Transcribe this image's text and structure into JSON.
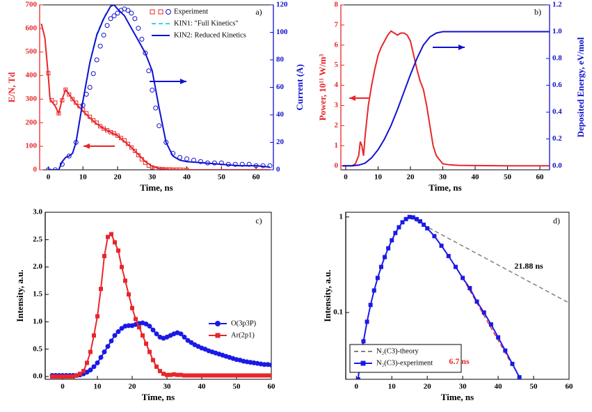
{
  "chart_data": [
    {
      "type": "line",
      "xlabel": "Time, ns",
      "ylabel": "E/N, Td",
      "y2label": "Current (A)",
      "annotations": [
        {
          "text": "a)"
        }
      ],
      "xlim": [
        -2.5,
        65
      ],
      "xticks": [
        0,
        10,
        20,
        30,
        40,
        50,
        60
      ],
      "ylim": [
        0,
        700
      ],
      "yticks": [
        0,
        100,
        200,
        300,
        400,
        500,
        600,
        700
      ],
      "y_color": "#e8262a",
      "y2lim": [
        0,
        120
      ],
      "y2ticks": [
        0,
        20,
        40,
        60,
        80,
        100,
        120
      ],
      "y2_color": "#1010d0",
      "legend": "upper right",
      "series": [
        {
          "color": "#e8262a",
          "line": "solid",
          "marker": "none",
          "x": [
            -2,
            -1,
            0,
            0.5,
            1,
            2,
            3,
            4,
            5,
            6,
            7,
            8,
            10,
            12,
            14,
            16,
            18,
            20,
            22,
            24,
            26,
            28,
            30,
            32,
            35,
            40,
            50,
            64
          ],
          "values": [
            620,
            560,
            400,
            300,
            290,
            270,
            240,
            300,
            340,
            320,
            300,
            280,
            250,
            220,
            195,
            175,
            160,
            145,
            120,
            95,
            65,
            35,
            15,
            5,
            2,
            0,
            0,
            0
          ]
        },
        {
          "name": "Experiment",
          "color": "#e8262a",
          "line": "none",
          "marker": "square",
          "fill": "open",
          "x": [
            0,
            1,
            2,
            3,
            4,
            5,
            6,
            7,
            8,
            9,
            10,
            11,
            12,
            13,
            14,
            15,
            16,
            17,
            18,
            19,
            20,
            21,
            22,
            23,
            24,
            25,
            26,
            27,
            28,
            29,
            30,
            31,
            32,
            33,
            34,
            35,
            36,
            37,
            38,
            39,
            40
          ],
          "values": [
            410,
            295,
            285,
            240,
            295,
            340,
            320,
            300,
            285,
            270,
            255,
            240,
            225,
            210,
            200,
            185,
            175,
            168,
            160,
            155,
            145,
            135,
            125,
            110,
            95,
            80,
            62,
            45,
            30,
            18,
            10,
            6,
            4,
            3,
            2,
            2,
            1,
            1,
            1,
            0,
            0
          ]
        },
        {
          "color": "#1010d0",
          "line": "none",
          "marker": "circle",
          "fill": "open",
          "axis": "y2",
          "x": [
            0,
            2,
            4,
            6,
            8,
            10,
            11,
            12,
            13,
            14,
            15,
            16,
            17,
            18,
            19,
            20,
            21,
            22,
            23,
            24,
            25,
            26,
            27,
            28,
            29,
            30,
            31,
            32,
            34,
            36,
            38,
            40,
            42,
            44,
            46,
            48,
            50,
            52,
            54,
            56,
            58,
            60,
            62,
            64
          ],
          "values": [
            0,
            0,
            4,
            10,
            20,
            47,
            55,
            60,
            70,
            80,
            90,
            98,
            105,
            110,
            112,
            114,
            116,
            117,
            116,
            114,
            110,
            103,
            95,
            85,
            72,
            58,
            45,
            32,
            20,
            12,
            9,
            8,
            7,
            6,
            5,
            5,
            5,
            4,
            4,
            4,
            4,
            3,
            3,
            3
          ]
        },
        {
          "name": "KIN1: \"Full Kinetics\"",
          "color": "#33d6e6",
          "line": "dashed",
          "marker": "none",
          "axis": "y2",
          "x": [
            0,
            2,
            3,
            4,
            5,
            6,
            7,
            8,
            9,
            10,
            12,
            14,
            16,
            18,
            19,
            20,
            22,
            24,
            26,
            28,
            30,
            32,
            34,
            36,
            38,
            40,
            45,
            50,
            55,
            60,
            64
          ],
          "values": [
            0,
            0,
            0,
            6,
            9,
            10,
            12,
            21,
            36,
            51,
            79,
            99,
            111,
            119,
            120,
            117,
            112,
            103,
            94,
            85,
            72,
            45,
            20,
            10,
            7,
            6,
            5,
            4,
            3,
            3,
            2
          ]
        },
        {
          "name": "KIN2: Reduced Kinetics",
          "color": "#1010d0",
          "line": "solid",
          "marker": "none",
          "axis": "y2",
          "x": [
            0,
            2,
            3,
            4,
            5,
            6,
            7,
            8,
            9,
            10,
            12,
            14,
            16,
            18,
            19,
            20,
            22,
            24,
            26,
            28,
            30,
            32,
            34,
            36,
            38,
            40,
            45,
            50,
            55,
            60,
            64
          ],
          "values": [
            0,
            0,
            0,
            6,
            9,
            10,
            12,
            20,
            35,
            50,
            78,
            98,
            110,
            119,
            120,
            117,
            112,
            103,
            94,
            85,
            72,
            45,
            20,
            10,
            7,
            6,
            5,
            4,
            3,
            3,
            2
          ]
        }
      ]
    },
    {
      "type": "line",
      "xlabel": "Time, ns",
      "ylabel": "Power, 10¹¹ W/m³",
      "y2label": "Deposited Energy, eV/mol",
      "annotations": [
        {
          "text": "b)"
        }
      ],
      "xlim": [
        -1.5,
        63
      ],
      "xticks": [
        0,
        10,
        20,
        30,
        40,
        50,
        60
      ],
      "ylim": [
        -0.2,
        8
      ],
      "yticks": [
        0,
        1,
        2,
        3,
        4,
        5,
        6,
        7,
        8
      ],
      "y_color": "#e8262a",
      "y2lim": [
        -0.03,
        1.2
      ],
      "y2ticks": [
        {
          "value": 0,
          "label": "0.0"
        },
        0.2,
        0.4,
        0.6,
        0.8,
        {
          "value": 1,
          "label": "1.0"
        },
        1.2
      ],
      "y2_color": "#1010d0",
      "series": [
        {
          "color": "#e8262a",
          "line": "solid",
          "marker": "none",
          "x": [
            -1,
            0,
            2,
            3,
            4,
            4.5,
            5,
            5.5,
            6,
            7,
            8,
            9,
            10,
            11,
            12,
            13,
            14,
            15,
            16,
            17,
            18,
            19,
            20,
            21,
            22,
            23,
            24,
            25,
            26,
            27,
            28,
            30,
            32,
            35,
            40,
            50,
            63
          ],
          "values": [
            0,
            0,
            0,
            0.1,
            0.5,
            1.2,
            1,
            0.5,
            1.5,
            3,
            4,
            4.8,
            5.5,
            5.9,
            6.2,
            6.5,
            6.7,
            6.6,
            6.5,
            6.6,
            6.6,
            6.5,
            6.2,
            5.5,
            4.8,
            4.2,
            3.8,
            3,
            2,
            1,
            0.5,
            0.1,
            0.05,
            0.02,
            0.01,
            0,
            0
          ]
        },
        {
          "color": "#1010d0",
          "line": "solid",
          "marker": "none",
          "axis": "y2",
          "x": [
            -1,
            0,
            2,
            4,
            6,
            8,
            10,
            12,
            14,
            16,
            18,
            20,
            22,
            24,
            26,
            28,
            30,
            32,
            35,
            40,
            50,
            63
          ],
          "values": [
            0,
            0,
            0,
            0.005,
            0.02,
            0.06,
            0.12,
            0.2,
            0.3,
            0.42,
            0.55,
            0.68,
            0.8,
            0.9,
            0.96,
            0.99,
            1,
            1,
            1,
            1,
            1,
            1
          ]
        }
      ]
    },
    {
      "type": "line",
      "xlabel": "Time, ns",
      "ylabel": "Intensity, a.u.",
      "annotations": [
        {
          "text": "c)"
        }
      ],
      "xlim": [
        -5,
        60
      ],
      "xticks": [
        0,
        10,
        20,
        30,
        40,
        50,
        60
      ],
      "ylim": [
        -0.05,
        3
      ],
      "yticks": [
        {
          "value": 0,
          "label": "0.0"
        },
        0.5,
        {
          "value": 1,
          "label": "1.0"
        },
        1.5,
        {
          "value": 2,
          "label": "2.0"
        },
        2.5,
        {
          "value": 3,
          "label": "3.0"
        }
      ],
      "legend": "center right",
      "series": [
        {
          "name": "O(3p3P)",
          "color": "#1a1ae6",
          "line": "solid",
          "marker": "circle",
          "fill": "filled",
          "x": [
            -3,
            -2,
            -1,
            0,
            1,
            2,
            3,
            4,
            5,
            6,
            7,
            8,
            9,
            10,
            11,
            12,
            13,
            14,
            15,
            16,
            17,
            18,
            19,
            20,
            21,
            22,
            23,
            24,
            25,
            26,
            27,
            28,
            29,
            30,
            31,
            32,
            33,
            34,
            35,
            36,
            37,
            38,
            39,
            40,
            41,
            42,
            43,
            44,
            45,
            46,
            47,
            48,
            49,
            50,
            51,
            52,
            53,
            54,
            55,
            56,
            57,
            58,
            59,
            60
          ],
          "values": [
            0.02,
            0.02,
            0.02,
            0.02,
            0.02,
            0.02,
            0.02,
            0.02,
            0.03,
            0.05,
            0.08,
            0.12,
            0.18,
            0.25,
            0.35,
            0.45,
            0.55,
            0.65,
            0.75,
            0.82,
            0.88,
            0.92,
            0.93,
            0.93,
            0.95,
            0.97,
            0.98,
            0.96,
            0.92,
            0.85,
            0.78,
            0.72,
            0.7,
            0.72,
            0.75,
            0.78,
            0.8,
            0.78,
            0.72,
            0.66,
            0.62,
            0.58,
            0.55,
            0.52,
            0.5,
            0.47,
            0.45,
            0.43,
            0.41,
            0.39,
            0.37,
            0.35,
            0.33,
            0.31,
            0.3,
            0.28,
            0.27,
            0.26,
            0.25,
            0.24,
            0.23,
            0.22,
            0.22,
            0.21
          ]
        },
        {
          "name": "Ar(2p1)",
          "color": "#e8262a",
          "line": "solid",
          "marker": "square",
          "fill": "filled",
          "x": [
            -3,
            -2,
            -1,
            0,
            1,
            2,
            3,
            4,
            5,
            6,
            7,
            8,
            9,
            10,
            11,
            12,
            13,
            14,
            15,
            16,
            17,
            18,
            19,
            20,
            21,
            22,
            23,
            24,
            25,
            26,
            27,
            28,
            29,
            30,
            31,
            32,
            33,
            34,
            35,
            36,
            37,
            38,
            39,
            40,
            41,
            42,
            43,
            44,
            45,
            46,
            47,
            48,
            49,
            50,
            51,
            52,
            53,
            54,
            55,
            56,
            57,
            58,
            59,
            60
          ],
          "values": [
            0,
            0,
            0,
            0,
            0,
            0,
            0,
            0.02,
            0.05,
            0.1,
            0.25,
            0.45,
            0.75,
            1.1,
            1.6,
            2.2,
            2.55,
            2.6,
            2.45,
            2.3,
            2,
            1.75,
            1.5,
            1.25,
            1.05,
            0.9,
            0.75,
            0.6,
            0.45,
            0.3,
            0.18,
            0.1,
            0.05,
            0.03,
            0.03,
            0.04,
            0.03,
            0.03,
            0.02,
            0.02,
            0.02,
            0.02,
            0.02,
            0.02,
            0.02,
            0.02,
            0.02,
            0.02,
            0.02,
            0.02,
            0.02,
            0.02,
            0.02,
            0.02,
            0.02,
            0.02,
            0.02,
            0.02,
            0.02,
            0.02,
            0.02,
            0.02,
            0.02,
            0.02
          ]
        }
      ]
    },
    {
      "type": "line",
      "xlabel": "Time, ns",
      "ylabel": "Intensity, a.u.",
      "annotations": [
        {
          "text": "d)"
        },
        {
          "text": "21.88 ns"
        },
        {
          "text": "6.7 ns"
        }
      ],
      "xlim": [
        -3,
        60
      ],
      "xticks": [
        0,
        10,
        20,
        30,
        40,
        50,
        60
      ],
      "ylim": [
        0.02,
        1.12
      ],
      "yticks": [
        0.1,
        1
      ],
      "log_y": true,
      "legend": "lower left",
      "series": [
        {
          "name": "N₂(C3)-theory",
          "color": "#808080",
          "line": "dashed",
          "marker": "none",
          "x": [
            17,
            60
          ],
          "values": [
            0.9,
            0.126
          ]
        },
        {
          "color": "#e8262a",
          "line": "dashed",
          "marker": "none",
          "x": [
            30,
            44
          ],
          "values": [
            0.23,
            0.028
          ]
        },
        {
          "name": "N₂(C3)-experiment",
          "color": "#1a1ae6",
          "line": "solid",
          "marker": "square",
          "fill": "filled",
          "x": [
            0.5,
            1,
            2,
            3,
            4,
            5,
            6,
            7,
            8,
            9,
            10,
            11,
            12,
            13,
            14,
            15,
            16,
            17,
            18,
            19,
            20,
            22,
            24,
            26,
            28,
            30,
            32,
            34,
            36,
            38,
            40,
            42,
            44,
            46,
            47
          ],
          "values": [
            0.02,
            0.03,
            0.05,
            0.08,
            0.12,
            0.17,
            0.23,
            0.3,
            0.38,
            0.47,
            0.57,
            0.68,
            0.78,
            0.88,
            0.95,
            1,
            0.99,
            0.95,
            0.9,
            0.83,
            0.76,
            0.63,
            0.5,
            0.39,
            0.3,
            0.23,
            0.18,
            0.13,
            0.1,
            0.075,
            0.055,
            0.04,
            0.029,
            0.021,
            0.018
          ]
        }
      ]
    }
  ]
}
